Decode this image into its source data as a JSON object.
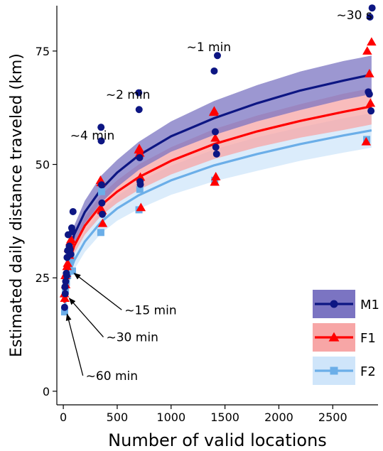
{
  "chart_data": {
    "type": "scatter",
    "xlabel": "Number of valid locations",
    "ylabel": "Estimated daily distance traveled (km)",
    "xlim": [
      -60,
      2920
    ],
    "ylim": [
      -3,
      85
    ],
    "grid": false,
    "legend_position": "bottom-right",
    "x_ticks": [
      0,
      500,
      1000,
      1500,
      2000,
      2500
    ],
    "y_ticks": [
      0,
      25,
      50,
      75
    ],
    "series": [
      {
        "name": "M1",
        "marker": "circle",
        "color": "#0d1683",
        "band_color": "#7b74c2",
        "curve": [
          [
            10,
            20.5
          ],
          [
            30,
            26.5
          ],
          [
            60,
            31
          ],
          [
            100,
            34.5
          ],
          [
            200,
            39.5
          ],
          [
            350,
            44.5
          ],
          [
            500,
            48.2
          ],
          [
            700,
            52
          ],
          [
            1000,
            56.2
          ],
          [
            1400,
            60.2
          ],
          [
            1800,
            63.5
          ],
          [
            2200,
            66.3
          ],
          [
            2600,
            68.5
          ],
          [
            2860,
            69.8
          ]
        ],
        "band_upper": [
          [
            10,
            22
          ],
          [
            30,
            28
          ],
          [
            60,
            32.5
          ],
          [
            100,
            36.5
          ],
          [
            200,
            42
          ],
          [
            350,
            47.5
          ],
          [
            500,
            51
          ],
          [
            700,
            55
          ],
          [
            1000,
            59.5
          ],
          [
            1400,
            64
          ],
          [
            1800,
            67.5
          ],
          [
            2200,
            70.5
          ],
          [
            2600,
            72.8
          ],
          [
            2860,
            74
          ]
        ],
        "band_lower": [
          [
            10,
            19
          ],
          [
            30,
            25
          ],
          [
            60,
            29.5
          ],
          [
            100,
            32.5
          ],
          [
            200,
            37
          ],
          [
            350,
            41.5
          ],
          [
            500,
            45
          ],
          [
            700,
            48.8
          ],
          [
            1000,
            52.8
          ],
          [
            1400,
            56.5
          ],
          [
            1800,
            59.5
          ],
          [
            2200,
            62
          ],
          [
            2600,
            64.3
          ],
          [
            2860,
            65.5
          ]
        ],
        "points": [
          [
            12,
            18.5
          ],
          [
            15,
            23
          ],
          [
            18,
            21.5
          ],
          [
            22,
            24.2
          ],
          [
            28,
            26
          ],
          [
            32,
            25.5
          ],
          [
            35,
            29.5
          ],
          [
            40,
            31
          ],
          [
            45,
            34.5
          ],
          [
            55,
            32
          ],
          [
            62,
            31.3
          ],
          [
            70,
            30.2
          ],
          [
            78,
            36
          ],
          [
            85,
            35.2
          ],
          [
            90,
            39.6
          ],
          [
            350,
            58.2
          ],
          [
            352,
            55.2
          ],
          [
            355,
            45.5
          ],
          [
            358,
            41.5
          ],
          [
            362,
            39
          ],
          [
            700,
            65.8
          ],
          [
            703,
            62.1
          ],
          [
            708,
            51.5
          ],
          [
            712,
            46.2
          ],
          [
            715,
            45.6
          ],
          [
            1400,
            70.6
          ],
          [
            1410,
            57.2
          ],
          [
            1415,
            53.8
          ],
          [
            1422,
            52.3
          ],
          [
            1430,
            74
          ],
          [
            2830,
            66
          ],
          [
            2840,
            65.5
          ],
          [
            2845,
            82.5
          ],
          [
            2855,
            61.8
          ],
          [
            2865,
            84.5
          ]
        ]
      },
      {
        "name": "F1",
        "marker": "triangle",
        "color": "#ff0000",
        "band_color": "#f7a6a6",
        "curve": [
          [
            10,
            19.5
          ],
          [
            30,
            24.8
          ],
          [
            60,
            28.8
          ],
          [
            100,
            32
          ],
          [
            200,
            36.5
          ],
          [
            350,
            41
          ],
          [
            500,
            44
          ],
          [
            700,
            47.2
          ],
          [
            1000,
            50.8
          ],
          [
            1400,
            54.5
          ],
          [
            1800,
            57.3
          ],
          [
            2200,
            59.6
          ],
          [
            2600,
            61.6
          ],
          [
            2860,
            62.8
          ]
        ],
        "band_upper": [
          [
            10,
            21
          ],
          [
            30,
            26.3
          ],
          [
            60,
            30.3
          ],
          [
            100,
            33.7
          ],
          [
            200,
            38.5
          ],
          [
            350,
            43.3
          ],
          [
            500,
            46.5
          ],
          [
            700,
            50
          ],
          [
            1000,
            53.8
          ],
          [
            1400,
            57.8
          ],
          [
            1800,
            60.8
          ],
          [
            2200,
            63.3
          ],
          [
            2600,
            65.6
          ],
          [
            2860,
            66.8
          ]
        ],
        "band_lower": [
          [
            10,
            18
          ],
          [
            30,
            23.3
          ],
          [
            60,
            27.3
          ],
          [
            100,
            30.3
          ],
          [
            200,
            34.5
          ],
          [
            350,
            38.7
          ],
          [
            500,
            41.5
          ],
          [
            700,
            44.4
          ],
          [
            1000,
            47.8
          ],
          [
            1400,
            51.2
          ],
          [
            1800,
            53.8
          ],
          [
            2200,
            55.9
          ],
          [
            2600,
            57.6
          ],
          [
            2860,
            58.8
          ]
        ],
        "points": [
          [
            10,
            21.5
          ],
          [
            14,
            20.5
          ],
          [
            18,
            25.5
          ],
          [
            22,
            23.5
          ],
          [
            28,
            26
          ],
          [
            34,
            27.5
          ],
          [
            40,
            28.2
          ],
          [
            48,
            31.5
          ],
          [
            56,
            30
          ],
          [
            64,
            33
          ],
          [
            72,
            33.5
          ],
          [
            345,
            46.5
          ],
          [
            350,
            46
          ],
          [
            355,
            40
          ],
          [
            360,
            39.8
          ],
          [
            365,
            37
          ],
          [
            700,
            53.2
          ],
          [
            705,
            53.5
          ],
          [
            710,
            52.5
          ],
          [
            715,
            47.2
          ],
          [
            720,
            40.5
          ],
          [
            1395,
            61.5
          ],
          [
            1400,
            61.8
          ],
          [
            1405,
            46.1
          ],
          [
            1410,
            55.8
          ],
          [
            1415,
            47.3
          ],
          [
            2810,
            55
          ],
          [
            2820,
            75
          ],
          [
            2840,
            70
          ],
          [
            2850,
            63.5
          ],
          [
            2860,
            77
          ]
        ]
      },
      {
        "name": "F2",
        "marker": "square",
        "color": "#6baee8",
        "band_color": "#cfe5fa",
        "curve": [
          [
            10,
            17.5
          ],
          [
            30,
            22.3
          ],
          [
            60,
            26.2
          ],
          [
            100,
            28.8
          ],
          [
            200,
            33
          ],
          [
            350,
            37.3
          ],
          [
            500,
            40.3
          ],
          [
            700,
            43.2
          ],
          [
            1000,
            46.5
          ],
          [
            1400,
            49.8
          ],
          [
            1800,
            52.3
          ],
          [
            2200,
            54.5
          ],
          [
            2600,
            56.4
          ],
          [
            2860,
            57.5
          ]
        ],
        "band_upper": [
          [
            10,
            19
          ],
          [
            30,
            24
          ],
          [
            60,
            28
          ],
          [
            100,
            30.8
          ],
          [
            200,
            35.3
          ],
          [
            350,
            39.8
          ],
          [
            500,
            43
          ],
          [
            700,
            46.2
          ],
          [
            1000,
            49.7
          ],
          [
            1400,
            53.3
          ],
          [
            1800,
            56
          ],
          [
            2200,
            58.2
          ],
          [
            2600,
            60.2
          ],
          [
            2860,
            61.3
          ]
        ],
        "band_lower": [
          [
            10,
            16
          ],
          [
            30,
            20.6
          ],
          [
            60,
            24.4
          ],
          [
            100,
            26.8
          ],
          [
            200,
            30.7
          ],
          [
            350,
            34.8
          ],
          [
            500,
            37.6
          ],
          [
            700,
            40.2
          ],
          [
            1000,
            43.3
          ],
          [
            1400,
            46.3
          ],
          [
            1800,
            48.6
          ],
          [
            2200,
            50.8
          ],
          [
            2600,
            52.6
          ],
          [
            2860,
            53.7
          ]
        ],
        "points": [
          [
            12,
            17.5
          ],
          [
            20,
            22.5
          ],
          [
            28,
            24
          ],
          [
            40,
            25.5
          ],
          [
            55,
            28
          ],
          [
            70,
            29.5
          ],
          [
            85,
            26.5
          ],
          [
            348,
            35
          ],
          [
            355,
            44
          ],
          [
            702,
            40
          ],
          [
            710,
            44.5
          ],
          [
            1405,
            46.5
          ],
          [
            2815,
            55.5
          ]
        ]
      }
    ],
    "annotations": [
      {
        "text": "~30 s",
        "x": 2700,
        "y": 82,
        "arrow": false
      },
      {
        "text": "~1 min",
        "x": 1350,
        "y": 75,
        "arrow": false
      },
      {
        "text": "~2 min",
        "x": 600,
        "y": 64.5,
        "arrow": false
      },
      {
        "text": "~4 min",
        "x": 270,
        "y": 55.5,
        "arrow": false
      },
      {
        "text": "~15 min",
        "x": 810,
        "y": 17,
        "arrow": true,
        "arrow_to": [
          100,
          26
        ]
      },
      {
        "text": "~30 min",
        "x": 640,
        "y": 11,
        "arrow": true,
        "arrow_to": [
          55,
          20.5
        ]
      },
      {
        "text": "~60 min",
        "x": 450,
        "y": 2.5,
        "arrow": true,
        "arrow_to": [
          35,
          17
        ]
      }
    ]
  }
}
